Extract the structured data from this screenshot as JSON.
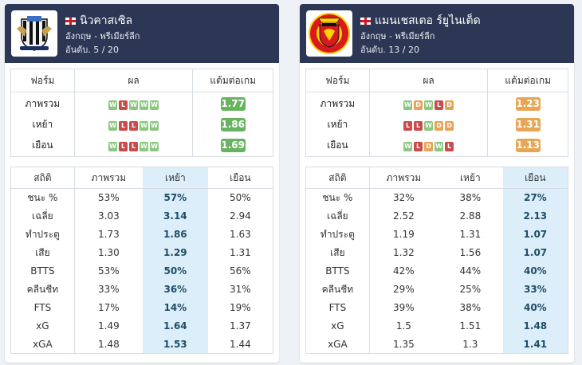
{
  "teams": [
    {
      "name": "นิวคาสเซิล",
      "country_league": "อังกฤษ - พรีเมียร์ลีก",
      "rank": "อันดับ. 5 / 20",
      "flag_icon": "england-flag-icon",
      "logo_icon": "newcastle-crest-icon",
      "highlight_column": 2,
      "form_headers": [
        "ฟอร์ม",
        "ผล",
        "แต้มต่อเกม"
      ],
      "form_rows": [
        {
          "label": "ภาพรวม",
          "results": [
            "W",
            "L",
            "W",
            "W",
            "W"
          ],
          "ppg": "1.77",
          "ppg_color": "#68b35f"
        },
        {
          "label": "เหย้า",
          "results": [
            "W",
            "L",
            "L",
            "W",
            "W"
          ],
          "ppg": "1.86",
          "ppg_color": "#68b35f"
        },
        {
          "label": "เยือน",
          "results": [
            "W",
            "L",
            "L",
            "W",
            "W"
          ],
          "ppg": "1.69",
          "ppg_color": "#68b35f"
        }
      ],
      "stat_headers": [
        "สถิติ",
        "ภาพรวม",
        "เหย้า",
        "เยือน"
      ],
      "stat_rows": [
        {
          "label": "ชนะ %",
          "values": [
            "53%",
            "57%",
            "50%"
          ]
        },
        {
          "label": "เฉลี่ย",
          "values": [
            "3.03",
            "3.14",
            "2.94"
          ]
        },
        {
          "label": "ทำประตู",
          "values": [
            "1.73",
            "1.86",
            "1.63"
          ]
        },
        {
          "label": "เสีย",
          "values": [
            "1.30",
            "1.29",
            "1.31"
          ]
        },
        {
          "label": "BTTS",
          "values": [
            "53%",
            "50%",
            "56%"
          ]
        },
        {
          "label": "คลีนชีท",
          "values": [
            "33%",
            "36%",
            "31%"
          ]
        },
        {
          "label": "FTS",
          "values": [
            "17%",
            "14%",
            "19%"
          ]
        },
        {
          "label": "xG",
          "values": [
            "1.49",
            "1.64",
            "1.37"
          ]
        },
        {
          "label": "xGA",
          "values": [
            "1.48",
            "1.53",
            "1.44"
          ]
        }
      ]
    },
    {
      "name": "แมนเชสเตอ ร์ยูไนเต็ด",
      "country_league": "อังกฤษ - พรีเมียร์ลีก",
      "rank": "อันดับ. 13 / 20",
      "flag_icon": "england-flag-icon",
      "logo_icon": "manchester-united-crest-icon",
      "highlight_column": 3,
      "form_headers": [
        "ฟอร์ม",
        "ผล",
        "แต้มต่อเกม"
      ],
      "form_rows": [
        {
          "label": "ภาพรวม",
          "results": [
            "W",
            "D",
            "W",
            "L",
            "D"
          ],
          "ppg": "1.23",
          "ppg_color": "#e7a653"
        },
        {
          "label": "เหย้า",
          "results": [
            "L",
            "L",
            "W",
            "D",
            "D"
          ],
          "ppg": "1.31",
          "ppg_color": "#e7a653"
        },
        {
          "label": "เยือน",
          "results": [
            "W",
            "L",
            "D",
            "W",
            "L"
          ],
          "ppg": "1.13",
          "ppg_color": "#e7a653"
        }
      ],
      "stat_headers": [
        "สถิติ",
        "ภาพรวม",
        "เหย้า",
        "เยือน"
      ],
      "stat_rows": [
        {
          "label": "ชนะ %",
          "values": [
            "32%",
            "38%",
            "27%"
          ]
        },
        {
          "label": "เฉลี่ย",
          "values": [
            "2.52",
            "2.88",
            "2.13"
          ]
        },
        {
          "label": "ทำประตู",
          "values": [
            "1.19",
            "1.31",
            "1.07"
          ]
        },
        {
          "label": "เสีย",
          "values": [
            "1.32",
            "1.56",
            "1.07"
          ]
        },
        {
          "label": "BTTS",
          "values": [
            "42%",
            "44%",
            "40%"
          ]
        },
        {
          "label": "คลีนชีท",
          "values": [
            "29%",
            "25%",
            "33%"
          ]
        },
        {
          "label": "FTS",
          "values": [
            "39%",
            "38%",
            "40%"
          ]
        },
        {
          "label": "xG",
          "values": [
            "1.5",
            "1.51",
            "1.48"
          ]
        },
        {
          "label": "xGA",
          "values": [
            "1.35",
            "1.3",
            "1.41"
          ]
        }
      ]
    }
  ],
  "colors": {
    "header_bg": "#2c3755",
    "win": "#8bc77f",
    "loss": "#c94b4b",
    "draw": "#e5a457",
    "highlight_bg": "#dceefa"
  }
}
